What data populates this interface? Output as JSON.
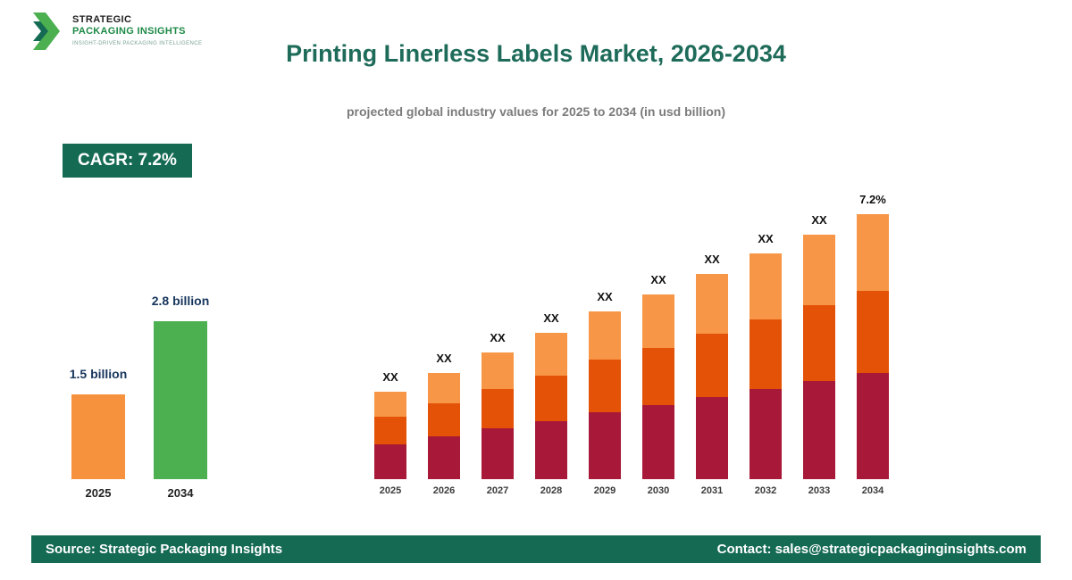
{
  "header": {
    "logo": {
      "name": "STRATEGIC",
      "name2": "PACKAGING INSIGHTS",
      "tagline": "INSIGHT-DRIVEN PACKAGING INTELLIGENCE"
    },
    "title": "Printing Linerless Labels Market, 2026-2034",
    "subtitle": "projected global industry values for 2025 to 2034 (in usd billion)"
  },
  "badge": {
    "label": "CAGR: 7.2%"
  },
  "chart_data": [
    {
      "type": "bar",
      "title": "2025 vs 2034 market size comparison",
      "categories": [
        "2025",
        "2034"
      ],
      "values": [
        1.5,
        2.8
      ],
      "value_labels": [
        "1.5 billion",
        "2.8 billion"
      ],
      "bar_colors": [
        "#F6913D",
        "#4CAF50"
      ],
      "unit": "usd billion",
      "grid": false,
      "legend": "none"
    },
    {
      "type": "bar",
      "subtype": "stacked",
      "title": "projected global industry values 2025-2034 (values masked as XX)",
      "categories": [
        "2025",
        "2026",
        "2027",
        "2028",
        "2029",
        "2030",
        "2031",
        "2032",
        "2033",
        "2034"
      ],
      "totals_estimated": [
        1.5,
        1.64,
        1.79,
        1.93,
        2.09,
        2.21,
        2.36,
        2.51,
        2.65,
        2.8
      ],
      "bar_top_labels": [
        "XX",
        "XX",
        "XX",
        "XX",
        "XX",
        "XX",
        "XX",
        "XX",
        "XX",
        "7.2%"
      ],
      "segment_fractions_bottom_to_top": [
        0.4,
        0.31,
        0.29
      ],
      "segment_colors_bottom_to_top": [
        "#A81838",
        "#E35206",
        "#F79646"
      ],
      "ylim": [
        0.86,
        2.8
      ],
      "unit": "usd billion",
      "grid": false,
      "legend": "none"
    }
  ],
  "footer": {
    "source": "Source: Strategic Packaging Insights",
    "contact": "Contact: sales@strategicpackaginginsights.com"
  },
  "colors": {
    "brand_teal": "#156A54",
    "title_text": "#1E6B5A",
    "subtitle_text": "#7B7B7B",
    "value_label_text": "#17365D",
    "crimson": "#A81838",
    "orange_red": "#E35206",
    "light_orange": "#F79646",
    "green": "#4CAF50",
    "orange": "#F6913D"
  }
}
